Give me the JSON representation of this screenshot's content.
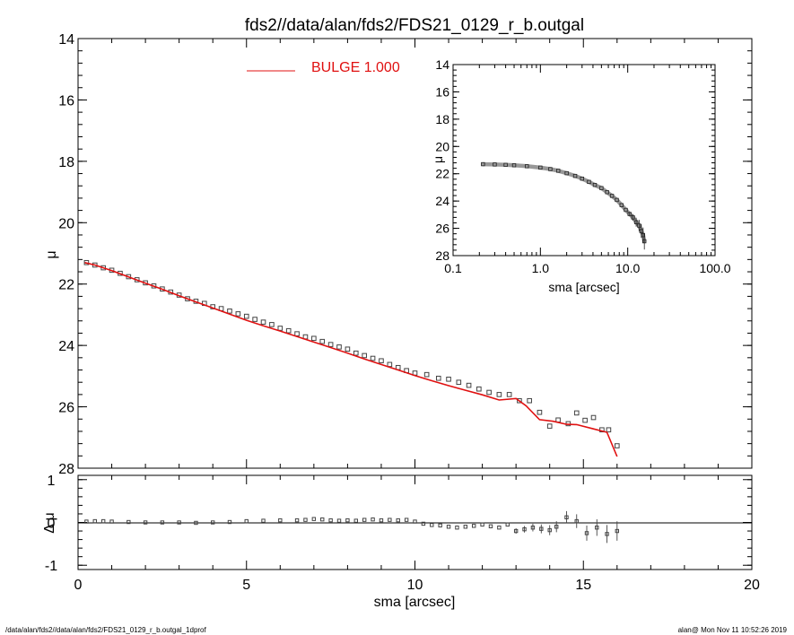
{
  "title": "fds2//data/alan/fds2/FDS21_0129_r_b.outgal",
  "footer_left": "/data/alan/fds2//data/alan/fds2/FDS21_0129_r_b.outgal_1dprof",
  "footer_right": "alan@  Mon Nov 11 10:52:26 2019",
  "colors": {
    "model": "#e01010",
    "data": "#444444",
    "axis": "#000000"
  },
  "chart_data": [
    {
      "type": "scatter",
      "panel": "main",
      "title": "fds2//data/alan/fds2/FDS21_0129_r_b.outgal",
      "xlabel": "",
      "ylabel": "μ",
      "xlim": [
        0,
        20
      ],
      "ylim": [
        28,
        14
      ],
      "y_reversed": true,
      "x_ticks": [
        0,
        5,
        10,
        15,
        20
      ],
      "y_ticks": [
        14,
        16,
        18,
        20,
        22,
        24,
        26,
        28
      ],
      "legend": {
        "position": "top-center",
        "label": "BULGE  1.000"
      },
      "series": [
        {
          "name": "data",
          "marker": "square",
          "x": [
            0.25,
            0.5,
            0.75,
            1.0,
            1.25,
            1.5,
            1.75,
            2.0,
            2.25,
            2.5,
            2.75,
            3.0,
            3.25,
            3.5,
            3.75,
            4.0,
            4.25,
            4.5,
            4.75,
            5.0,
            5.25,
            5.5,
            5.75,
            6.0,
            6.25,
            6.5,
            6.75,
            7.0,
            7.25,
            7.5,
            7.75,
            8.0,
            8.25,
            8.5,
            8.75,
            9.0,
            9.25,
            9.5,
            9.75,
            10.0,
            10.35,
            10.7,
            11.0,
            11.3,
            11.6,
            11.9,
            12.2,
            12.5,
            12.8,
            13.1,
            13.4,
            13.7,
            14.0,
            14.25,
            14.55,
            14.8,
            15.05,
            15.3,
            15.55,
            15.75,
            16.0
          ],
          "y": [
            21.3,
            21.38,
            21.47,
            21.55,
            21.65,
            21.76,
            21.86,
            21.96,
            22.06,
            22.16,
            22.26,
            22.36,
            22.48,
            22.56,
            22.63,
            22.74,
            22.8,
            22.88,
            22.97,
            23.05,
            23.15,
            23.24,
            23.32,
            23.44,
            23.52,
            23.62,
            23.72,
            23.77,
            23.87,
            23.97,
            24.05,
            24.12,
            24.25,
            24.33,
            24.42,
            24.5,
            24.62,
            24.72,
            24.82,
            24.9,
            24.95,
            25.07,
            25.1,
            25.2,
            25.3,
            25.42,
            25.53,
            25.6,
            25.6,
            25.8,
            25.8,
            26.18,
            26.63,
            26.43,
            26.55,
            26.2,
            26.44,
            26.35,
            26.75,
            26.75,
            27.27
          ]
        },
        {
          "name": "BULGE  1.000",
          "x": [
            0.2,
            0.5,
            1.0,
            1.5,
            2.0,
            2.5,
            3.0,
            3.5,
            4.0,
            4.5,
            5.0,
            5.5,
            6.0,
            6.5,
            7.0,
            7.5,
            8.0,
            8.5,
            9.0,
            9.5,
            10.0,
            10.5,
            11.0,
            11.5,
            12.0,
            12.5,
            13.0,
            13.3,
            13.7,
            14.1,
            14.5,
            14.8,
            15.3,
            15.7,
            16.0
          ],
          "y": [
            21.3,
            21.38,
            21.56,
            21.77,
            21.97,
            22.17,
            22.38,
            22.58,
            22.78,
            22.98,
            23.18,
            23.36,
            23.53,
            23.71,
            23.89,
            24.07,
            24.25,
            24.44,
            24.62,
            24.8,
            24.98,
            25.15,
            25.31,
            25.46,
            25.61,
            25.78,
            25.73,
            25.97,
            26.42,
            26.47,
            26.57,
            26.58,
            26.72,
            26.83,
            27.62
          ]
        }
      ]
    },
    {
      "type": "scatter",
      "panel": "inset",
      "title": "",
      "xlabel": "sma [arcsec]",
      "ylabel": "μ",
      "x_scale": "log",
      "xlim": [
        0.1,
        100
      ],
      "ylim": [
        28,
        14
      ],
      "y_reversed": true,
      "x_tick_labels": [
        "0.1",
        "1.0",
        "10.0",
        "100.0"
      ],
      "y_ticks": [
        14,
        16,
        18,
        20,
        22,
        24,
        26,
        28
      ],
      "series": [
        {
          "name": "data",
          "x": [
            0.22,
            0.3,
            0.4,
            0.5,
            0.7,
            1.0,
            1.3,
            1.6,
            2.0,
            2.5,
            3.0,
            3.6,
            4.2,
            5.0,
            5.8,
            6.6,
            7.5,
            8.5,
            9.5,
            10.5,
            11.5,
            12.5,
            13.5,
            14.3,
            15.0,
            15.5
          ],
          "y": [
            21.3,
            21.32,
            21.35,
            21.38,
            21.45,
            21.55,
            21.66,
            21.78,
            21.96,
            22.16,
            22.36,
            22.6,
            22.82,
            23.05,
            23.35,
            23.62,
            23.92,
            24.3,
            24.65,
            24.95,
            25.2,
            25.55,
            25.8,
            26.2,
            26.5,
            26.95
          ]
        }
      ]
    },
    {
      "type": "scatter",
      "panel": "residual",
      "title": "",
      "xlabel": "sma [arcsec]",
      "ylabel": "Δ μ",
      "xlim": [
        0,
        20
      ],
      "ylim": [
        -1.1,
        1.1
      ],
      "x_ticks": [
        0,
        5,
        10,
        15,
        20
      ],
      "y_ticks": [
        -1,
        0,
        1
      ],
      "zero_line": true,
      "series": [
        {
          "name": "residual",
          "x": [
            0.25,
            0.5,
            0.75,
            1.0,
            1.5,
            2.0,
            2.5,
            3.0,
            3.5,
            4.0,
            4.5,
            5.0,
            5.5,
            6.0,
            6.5,
            6.75,
            7.0,
            7.25,
            7.5,
            7.75,
            8.0,
            8.25,
            8.5,
            8.75,
            9.0,
            9.25,
            9.5,
            9.75,
            10.0,
            10.25,
            10.5,
            10.75,
            11.0,
            11.25,
            11.5,
            11.75,
            12.0,
            12.25,
            12.5,
            12.75,
            13.0,
            13.25,
            13.5,
            13.75,
            14.0,
            14.2,
            14.5,
            14.8,
            15.1,
            15.4,
            15.7,
            16.0
          ],
          "y": [
            0.02,
            0.03,
            0.03,
            0.02,
            0.01,
            0.0,
            0.0,
            0.0,
            -0.01,
            0.0,
            0.01,
            0.03,
            0.04,
            0.05,
            0.05,
            0.06,
            0.08,
            0.07,
            0.05,
            0.04,
            0.05,
            0.04,
            0.06,
            0.07,
            0.05,
            0.06,
            0.05,
            0.06,
            0.02,
            -0.03,
            -0.06,
            -0.07,
            -0.1,
            -0.12,
            -0.1,
            -0.08,
            -0.05,
            -0.09,
            -0.12,
            -0.05,
            -0.2,
            -0.16,
            -0.12,
            -0.15,
            -0.18,
            -0.1,
            0.12,
            0.03,
            -0.25,
            -0.12,
            -0.27,
            -0.2
          ]
        }
      ]
    }
  ]
}
